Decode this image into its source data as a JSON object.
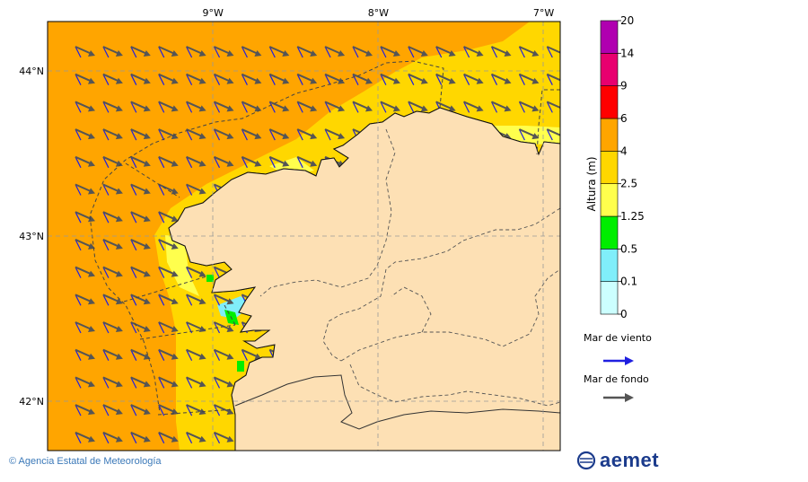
{
  "map": {
    "lon_ticks": [
      {
        "lon": -9,
        "label": "9°W"
      },
      {
        "lon": -8,
        "label": "8°W"
      },
      {
        "lon": -7,
        "label": "7°W"
      }
    ],
    "lat_ticks": [
      {
        "lat": 44,
        "label": "44°N"
      },
      {
        "lat": 43,
        "label": "43°N"
      },
      {
        "lat": 42,
        "label": "42°N"
      }
    ],
    "lon_range": [
      -10.0,
      -6.9
    ],
    "lat_range": [
      41.7,
      44.3
    ],
    "grid": true
  },
  "colorbar": {
    "title": "Altura (m)",
    "levels": [
      {
        "label": "0",
        "color": "#ccffff"
      },
      {
        "label": "0.1",
        "color": "#80eefa"
      },
      {
        "label": "0.5",
        "color": "#00ee00"
      },
      {
        "label": "1.25",
        "color": "#ffff4d"
      },
      {
        "label": "2.5",
        "color": "#ffd700"
      },
      {
        "label": "4",
        "color": "#ffa500"
      },
      {
        "label": "6",
        "color": "#ff0000"
      },
      {
        "label": "9",
        "color": "#e8006f"
      },
      {
        "label": "14",
        "color": "#b000b0"
      },
      {
        "label": "20",
        "color": ""
      }
    ]
  },
  "legend": {
    "wind_sea_label": "Mar de viento",
    "wind_sea_color": "#1f1fe0",
    "swell_label": "Mar de fondo",
    "swell_color": "#555555"
  },
  "footer": {
    "credit": "© Agencia Estatal de Meteorología",
    "logo_text": "aemet"
  },
  "colors": {
    "land": "#fde0b4",
    "sea_4_6": "#ffa500",
    "sea_2_5_4": "#ffd700",
    "sea_1_25_2_5": "#ffff4d"
  }
}
